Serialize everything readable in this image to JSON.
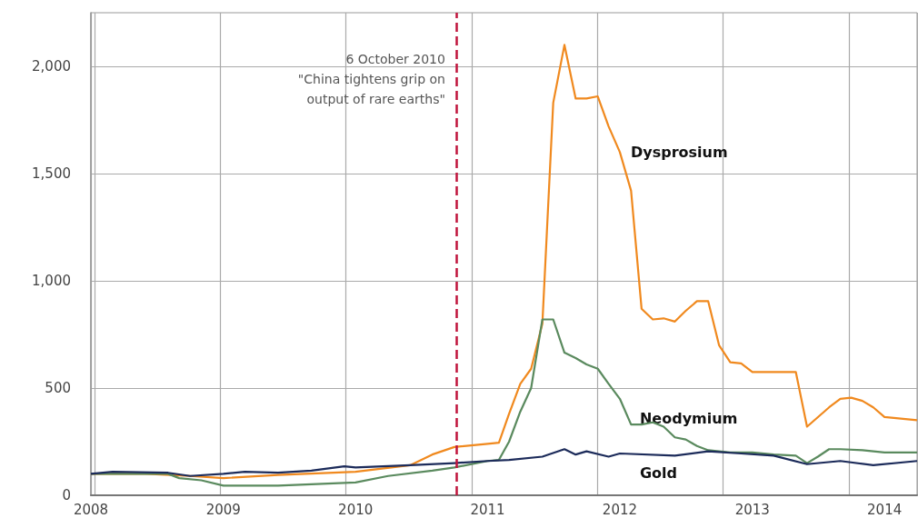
{
  "chart_data": {
    "type": "line",
    "xlim": [
      "2008-01-01",
      "2014-04-01"
    ],
    "xticks": [
      "2008",
      "2009",
      "2010",
      "2011",
      "2012",
      "2013",
      "2014"
    ],
    "ylim": [
      0,
      2250
    ],
    "yticks": [
      {
        "value": 0,
        "label": "0"
      },
      {
        "value": 500,
        "label": "500"
      },
      {
        "value": 1000,
        "label": "1,000"
      },
      {
        "value": 1500,
        "label": "1,500"
      },
      {
        "value": 2000,
        "label": "2,000"
      }
    ],
    "grid": true,
    "legend": false,
    "marker": "none",
    "line_style": "solid",
    "ref_lines": [
      {
        "axis": "x",
        "value": "2010-10-06",
        "label": "6 October 2010\n\"China tightens grip on\noutput of rare earths\"",
        "color": "#c0143c",
        "line_style": "dashed"
      }
    ],
    "series": [
      {
        "name": "Dysprosium",
        "color": "#f0891e",
        "x": [
          "2008-01",
          "2008-06",
          "2008-10",
          "2009-01",
          "2009-06",
          "2010-01",
          "2010-06",
          "2010-08",
          "2010-10",
          "2011-01",
          "2011-02",
          "2011-03",
          "2011-04",
          "2011-05",
          "2011-06",
          "2011-07",
          "2011-08",
          "2011-09",
          "2011-10",
          "2011-11",
          "2011-12",
          "2012-01",
          "2012-02",
          "2012-03",
          "2012-04",
          "2012-05",
          "2012-06",
          "2012-07",
          "2012-08",
          "2012-09",
          "2012-10",
          "2012-11",
          "2012-12",
          "2013-01",
          "2013-02",
          "2013-05",
          "2013-06",
          "2013-08",
          "2013-09",
          "2013-10",
          "2013-11",
          "2013-12",
          "2014-01",
          "2014-04"
        ],
        "values": [
          100,
          100,
          90,
          80,
          95,
          110,
          140,
          190,
          225,
          240,
          245,
          380,
          520,
          590,
          800,
          1830,
          2100,
          1850,
          1850,
          1860,
          1720,
          1600,
          1420,
          870,
          820,
          825,
          810,
          860,
          905,
          905,
          700,
          620,
          615,
          575,
          575,
          575,
          320,
          410,
          450,
          455,
          440,
          410,
          365,
          350
        ]
      },
      {
        "name": "Neodymium",
        "color": "#5a8a5e",
        "x": [
          "2008-01",
          "2008-08",
          "2008-09",
          "2008-11",
          "2009-01",
          "2009-06",
          "2010-01",
          "2010-04",
          "2010-08",
          "2010-10",
          "2011-01",
          "2011-02",
          "2011-03",
          "2011-04",
          "2011-05",
          "2011-06",
          "2011-07",
          "2011-08",
          "2011-09",
          "2011-10",
          "2011-11",
          "2011-12",
          "2012-01",
          "2012-02",
          "2012-03",
          "2012-04",
          "2012-05",
          "2012-06",
          "2012-07",
          "2012-08",
          "2012-09",
          "2012-10",
          "2012-11",
          "2013-01",
          "2013-03",
          "2013-05",
          "2013-06",
          "2013-07",
          "2013-08",
          "2013-09",
          "2013-11",
          "2014-01",
          "2014-04"
        ],
        "values": [
          100,
          100,
          80,
          70,
          45,
          45,
          60,
          90,
          115,
          130,
          160,
          165,
          250,
          390,
          500,
          820,
          820,
          665,
          640,
          610,
          590,
          520,
          450,
          330,
          330,
          340,
          320,
          270,
          260,
          230,
          210,
          205,
          200,
          200,
          190,
          185,
          150,
          180,
          215,
          215,
          210,
          200,
          200
        ]
      },
      {
        "name": "Gold",
        "color": "#1c2b5a",
        "x": [
          "2008-01",
          "2008-03",
          "2008-08",
          "2008-10",
          "2009-01",
          "2009-03",
          "2009-06",
          "2009-09",
          "2009-12",
          "2010-01",
          "2010-06",
          "2010-10",
          "2011-01",
          "2011-03",
          "2011-06",
          "2011-08",
          "2011-09",
          "2011-10",
          "2011-12",
          "2012-01",
          "2012-06",
          "2012-09",
          "2012-12",
          "2013-03",
          "2013-06",
          "2013-09",
          "2013-12",
          "2014-04"
        ],
        "values": [
          100,
          110,
          105,
          90,
          100,
          110,
          105,
          115,
          135,
          130,
          140,
          150,
          160,
          165,
          180,
          215,
          190,
          205,
          180,
          195,
          185,
          205,
          195,
          185,
          145,
          160,
          140,
          160
        ]
      }
    ]
  }
}
